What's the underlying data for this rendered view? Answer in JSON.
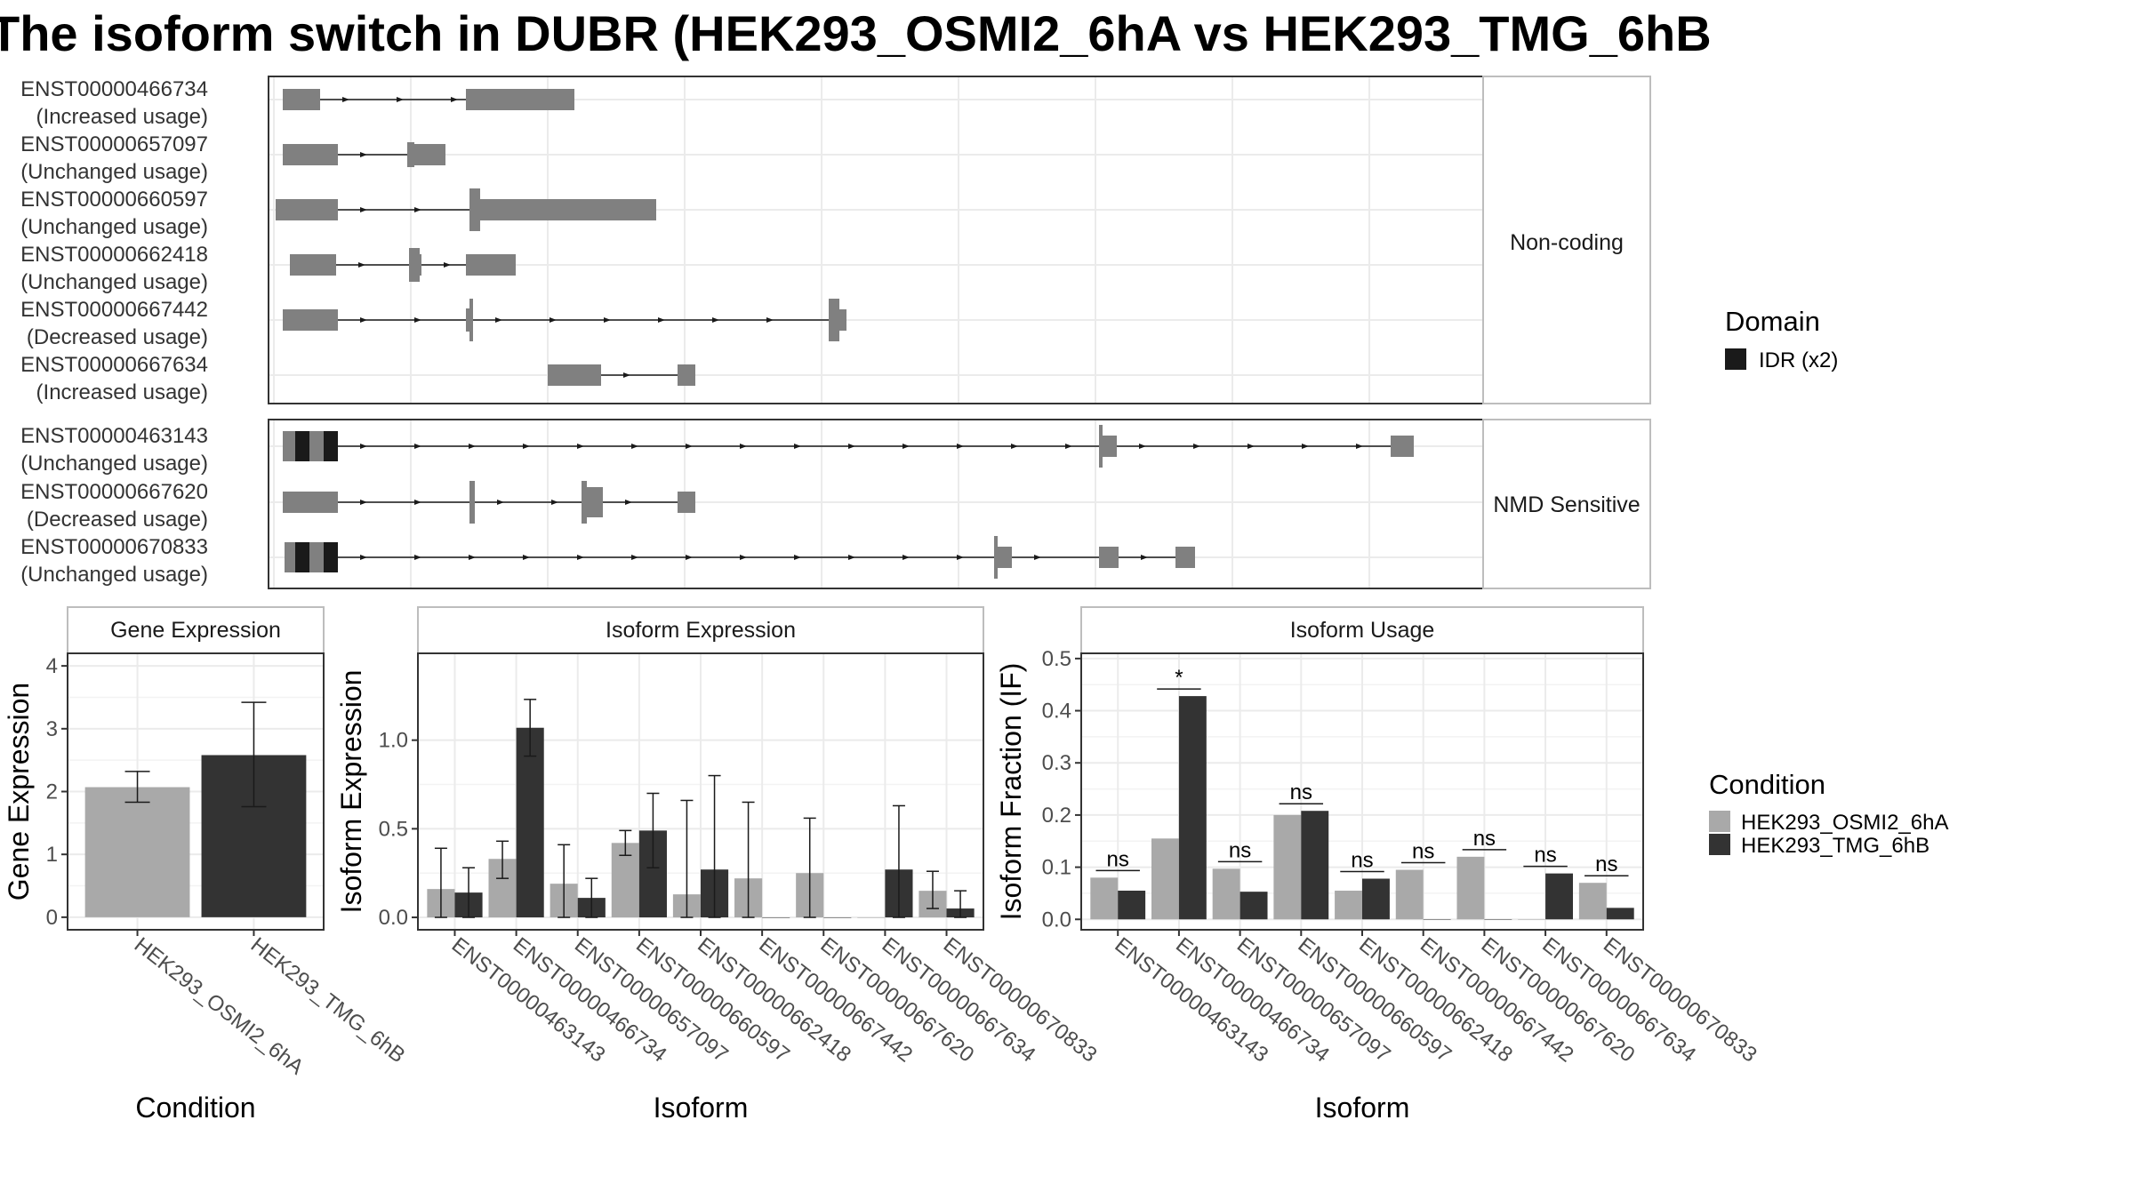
{
  "title": "The isoform switch in DUBR (HEK293_OSMI2_6hA vs HEK293_TMG_6hB",
  "colors": {
    "cond_a": "#a9a9a9",
    "cond_b": "#333333",
    "exon": "#808080",
    "domain": "#1a1a1a",
    "grid": "#ebebeb",
    "strip_bg": "#ffffff"
  },
  "chart_data": [
    {
      "type": "gene-structure",
      "facets": [
        "Non-coding",
        "NMD Sensitive"
      ],
      "legend": {
        "title": "Domain",
        "items": [
          "IDR (x2)"
        ]
      },
      "transcripts": [
        {
          "id": "ENST00000466734",
          "usage": "(Increased usage)",
          "facet": "Non-coding"
        },
        {
          "id": "ENST00000657097",
          "usage": "(Unchanged usage)",
          "facet": "Non-coding"
        },
        {
          "id": "ENST00000660597",
          "usage": "(Unchanged usage)",
          "facet": "Non-coding"
        },
        {
          "id": "ENST00000662418",
          "usage": "(Unchanged usage)",
          "facet": "Non-coding"
        },
        {
          "id": "ENST00000667442",
          "usage": "(Decreased usage)",
          "facet": "Non-coding"
        },
        {
          "id": "ENST00000667634",
          "usage": "(Increased usage)",
          "facet": "Non-coding"
        },
        {
          "id": "ENST00000463143",
          "usage": "(Unchanged usage)",
          "facet": "NMD Sensitive"
        },
        {
          "id": "ENST00000667620",
          "usage": "(Decreased usage)",
          "facet": "NMD Sensitive"
        },
        {
          "id": "ENST00000670833",
          "usage": "(Unchanged usage)",
          "facet": "NMD Sensitive"
        }
      ]
    },
    {
      "type": "bar",
      "title": "Gene Expression",
      "xlabel": "Condition",
      "ylabel": "Gene Expression",
      "ylim": [
        -0.2,
        4.2
      ],
      "yticks": [
        "0",
        "1",
        "2",
        "3",
        "4"
      ],
      "categories": [
        "HEK293_OSMI2_6hA",
        "HEK293_TMG_6hB"
      ],
      "values": [
        2.07,
        2.58
      ],
      "err_low": [
        1.83,
        1.76
      ],
      "err_high": [
        2.32,
        3.42
      ]
    },
    {
      "type": "bar",
      "title": "Isoform Expression",
      "xlabel": "Isoform",
      "ylabel": "Isoform Expression",
      "ylim": [
        -0.07,
        1.49
      ],
      "yticks": [
        "0.0",
        "0.5",
        "1.0"
      ],
      "categories": [
        "ENST00000463143",
        "ENST00000466734",
        "ENST00000657097",
        "ENST00000660597",
        "ENST00000662418",
        "ENST00000667442",
        "ENST00000667620",
        "ENST00000667634",
        "ENST00000670833"
      ],
      "series": [
        {
          "name": "HEK293_OSMI2_6hA",
          "values": [
            0.16,
            0.33,
            0.19,
            0.42,
            0.13,
            0.22,
            0.25,
            0.0,
            0.15
          ],
          "err_low": [
            0.0,
            0.22,
            0.0,
            0.35,
            0.0,
            0.0,
            0.0,
            0.0,
            0.05
          ],
          "err_high": [
            0.39,
            0.43,
            0.41,
            0.49,
            0.66,
            0.65,
            0.56,
            0.0,
            0.26
          ]
        },
        {
          "name": "HEK293_TMG_6hB",
          "values": [
            0.14,
            1.07,
            0.11,
            0.49,
            0.27,
            0.0,
            0.0,
            0.27,
            0.05
          ],
          "err_low": [
            0.0,
            0.91,
            0.0,
            0.28,
            0.0,
            0.0,
            0.0,
            0.0,
            0.0
          ],
          "err_high": [
            0.28,
            1.23,
            0.22,
            0.7,
            0.8,
            0.0,
            0.0,
            0.63,
            0.15
          ]
        }
      ]
    },
    {
      "type": "bar",
      "title": "Isoform Usage",
      "xlabel": "Isoform",
      "ylabel": "Isoform Fraction (IF)",
      "ylim": [
        -0.02,
        0.51
      ],
      "yticks": [
        "0.0",
        "0.1",
        "0.2",
        "0.3",
        "0.4",
        "0.5"
      ],
      "categories": [
        "ENST00000463143",
        "ENST00000466734",
        "ENST00000657097",
        "ENST00000660597",
        "ENST00000662418",
        "ENST00000667442",
        "ENST00000667620",
        "ENST00000667634",
        "ENST00000670833"
      ],
      "series": [
        {
          "name": "HEK293_OSMI2_6hA",
          "values": [
            0.08,
            0.155,
            0.097,
            0.2,
            0.055,
            0.095,
            0.12,
            0.0,
            0.07
          ]
        },
        {
          "name": "HEK293_TMG_6hB",
          "values": [
            0.055,
            0.428,
            0.053,
            0.208,
            0.078,
            0.0,
            0.0,
            0.088,
            0.022
          ]
        }
      ],
      "significance": [
        "ns",
        "*",
        "ns",
        "ns",
        "ns",
        "ns",
        "ns",
        "ns",
        "ns"
      ]
    }
  ],
  "condition_legend": {
    "title": "Condition",
    "items": [
      "HEK293_OSMI2_6hA",
      "HEK293_TMG_6hB"
    ]
  }
}
